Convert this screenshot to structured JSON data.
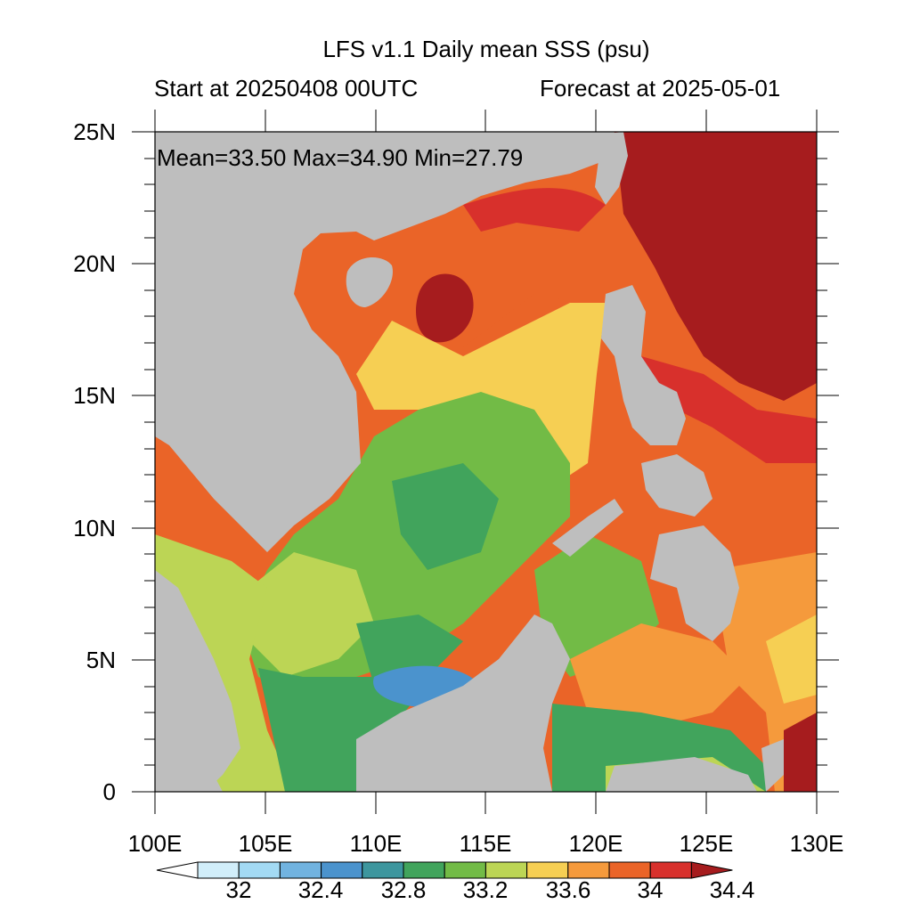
{
  "title": "LFS v1.1 Daily mean SSS (psu)",
  "start_label": "Start at 20250408 00UTC",
  "forecast_label": "Forecast at 2025-05-01",
  "stats": {
    "text": "Mean=33.50  Max=34.90  Min=27.79",
    "mean": 33.5,
    "max": 34.9,
    "min": 27.79
  },
  "map": {
    "lon_range": [
      100,
      130
    ],
    "lat_range": [
      0,
      25
    ],
    "lat_ticks": [
      "25N",
      "20N",
      "15N",
      "10N",
      "5N",
      "0"
    ],
    "lon_ticks": [
      "100E",
      "105E",
      "110E",
      "115E",
      "120E",
      "125E",
      "130E"
    ],
    "land_color": "#bebebe"
  },
  "colorbar": {
    "labels": [
      "32",
      "32.4",
      "32.8",
      "33.2",
      "33.6",
      "34",
      "34.4"
    ],
    "colors": [
      "#ffffff",
      "#d1eefa",
      "#a3daf4",
      "#71b3e0",
      "#4b93cd",
      "#3d969e",
      "#41a45c",
      "#72bb46",
      "#bcd555",
      "#f6cf53",
      "#f59a3c",
      "#ea6428",
      "#d8302c",
      "#a61c1e"
    ]
  }
}
